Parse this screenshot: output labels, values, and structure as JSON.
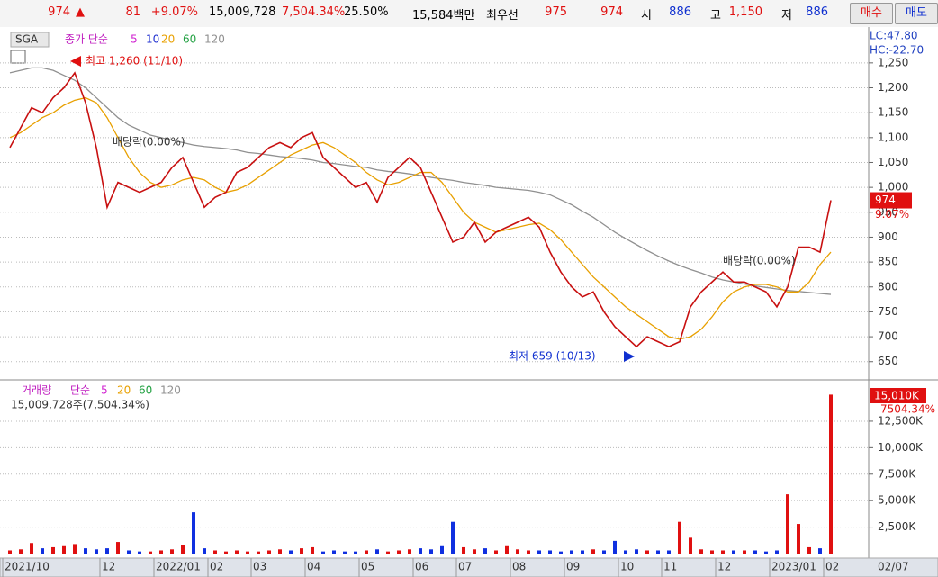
{
  "top_bar": {
    "price": "974",
    "arrow": "▲",
    "change": "81",
    "change_pct": "+9.07%",
    "volume": "15,009,728",
    "volume_pct": "7,504.34%",
    "turnover": "25.50%",
    "amount": "15,584백만",
    "best_label": "최우선",
    "ask": "975",
    "bid": "974",
    "open_label": "시",
    "open": "886",
    "high_label": "고",
    "high": "1,150",
    "low_label": "저",
    "low": "886",
    "buy": "매수",
    "sell": "매도"
  },
  "chart_data": [
    {
      "type": "line",
      "symbol": "SGA",
      "legend_label": "종가 단순",
      "periods": [
        5,
        10,
        20,
        60,
        120
      ],
      "period_colors": [
        "#d020d0",
        "#2030d0",
        "#e8a000",
        "#20a040",
        "#909090"
      ],
      "lc": "LC:47.80",
      "hc": "HC:-22.70",
      "last_label": "974",
      "last_pct": "9.07%",
      "annotations": [
        "최고 1,260 (11/10)",
        "배당락(0.00%)",
        "배당락(0.00%)",
        "최저 659 (10/13)"
      ],
      "ylim": [
        617,
        1313
      ],
      "yticks": [
        650,
        700,
        750,
        800,
        850,
        900,
        950,
        {
          "value": 1000,
          "label": "1,000"
        },
        {
          "value": 1050,
          "label": "1,050"
        },
        {
          "value": 1100,
          "label": "1,100"
        },
        {
          "value": 1150,
          "label": "1,150"
        },
        {
          "value": 1200,
          "label": "1,200"
        },
        {
          "value": 1250,
          "label": "1,250"
        }
      ],
      "grid": true,
      "series": [
        {
          "color": "#c81010",
          "values": [
            1080,
            1120,
            1160,
            1150,
            1180,
            1200,
            1230,
            1170,
            1080,
            960,
            1010,
            1000,
            990,
            1000,
            1010,
            1040,
            1060,
            1010,
            960,
            980,
            990,
            1030,
            1040,
            1060,
            1080,
            1090,
            1080,
            1100,
            1110,
            1060,
            1040,
            1020,
            1000,
            1010,
            970,
            1020,
            1040,
            1060,
            1040,
            990,
            940,
            890,
            900,
            930,
            890,
            910,
            920,
            930,
            940,
            920,
            870,
            830,
            800,
            780,
            790,
            750,
            720,
            700,
            680,
            700,
            690,
            680,
            690,
            760,
            790,
            810,
            830,
            810,
            810,
            800,
            790,
            760,
            800,
            880,
            880,
            870,
            974
          ]
        },
        {
          "color": "#e8a000",
          "values": [
            1100,
            1110,
            1125,
            1140,
            1150,
            1165,
            1175,
            1180,
            1170,
            1140,
            1100,
            1060,
            1030,
            1010,
            1000,
            1005,
            1015,
            1020,
            1015,
            1000,
            990,
            995,
            1005,
            1020,
            1035,
            1050,
            1065,
            1075,
            1085,
            1090,
            1080,
            1065,
            1050,
            1030,
            1015,
            1005,
            1010,
            1020,
            1030,
            1030,
            1010,
            980,
            950,
            930,
            920,
            910,
            915,
            920,
            925,
            928,
            915,
            895,
            870,
            845,
            820,
            800,
            780,
            760,
            745,
            730,
            715,
            700,
            695,
            700,
            715,
            740,
            770,
            790,
            800,
            805,
            805,
            800,
            790,
            790,
            810,
            845,
            870
          ]
        },
        {
          "color": "#909090",
          "values": [
            1230,
            1235,
            1240,
            1240,
            1235,
            1225,
            1215,
            1200,
            1180,
            1160,
            1140,
            1125,
            1115,
            1105,
            1100,
            1095,
            1090,
            1085,
            1082,
            1080,
            1078,
            1075,
            1070,
            1068,
            1065,
            1062,
            1060,
            1058,
            1055,
            1050,
            1048,
            1045,
            1042,
            1040,
            1035,
            1032,
            1030,
            1027,
            1024,
            1020,
            1017,
            1014,
            1010,
            1007,
            1004,
            1000,
            998,
            996,
            994,
            990,
            985,
            975,
            965,
            952,
            940,
            925,
            910,
            897,
            885,
            873,
            862,
            852,
            843,
            835,
            828,
            820,
            814,
            810,
            806,
            802,
            799,
            796,
            793,
            791,
            789,
            787,
            785
          ]
        }
      ]
    },
    {
      "type": "bar",
      "legend_label": "거래량",
      "legend_method": "단순",
      "periods": [
        5,
        20,
        60,
        120
      ],
      "period_colors": [
        "#d020d0",
        "#e8a000",
        "#20a040",
        "#909090"
      ],
      "summary": "15,009,728주(7,504.34%)",
      "last_label": "15,010K",
      "last_pct": "7504.34%",
      "end_label": "02/07",
      "up_color": "#e01010",
      "down_color": "#1030e0",
      "categories": [
        "2021/10",
        null,
        null,
        null,
        null,
        null,
        null,
        null,
        null,
        "12",
        null,
        null,
        null,
        null,
        "2022/01",
        null,
        null,
        null,
        null,
        "02",
        null,
        null,
        null,
        "03",
        null,
        null,
        null,
        null,
        "04",
        null,
        null,
        null,
        null,
        "05",
        null,
        null,
        null,
        null,
        "06",
        null,
        null,
        null,
        "07",
        null,
        null,
        null,
        null,
        "08",
        null,
        null,
        null,
        null,
        "09",
        null,
        null,
        null,
        null,
        "10",
        null,
        null,
        null,
        "11",
        null,
        null,
        null,
        null,
        "12",
        null,
        null,
        null,
        null,
        "2023/01",
        null,
        null,
        null,
        null,
        "02"
      ],
      "ylim": [
        0,
        16150
      ],
      "yticks": [
        {
          "value": 2500,
          "label": "2,500K"
        },
        {
          "value": 5000,
          "label": "5,000K"
        },
        {
          "value": 7500,
          "label": "7,500K"
        },
        {
          "value": 10000,
          "label": "10,000K"
        },
        {
          "value": 12500,
          "label": "12,500K"
        }
      ],
      "values": [
        300,
        400,
        1000,
        500,
        600,
        700,
        900,
        500,
        400,
        500,
        1100,
        300,
        200,
        200,
        300,
        400,
        800,
        3900,
        500,
        300,
        200,
        300,
        200,
        200,
        300,
        400,
        300,
        500,
        600,
        200,
        300,
        200,
        200,
        300,
        400,
        200,
        300,
        400,
        500,
        400,
        700,
        3000,
        600,
        400,
        500,
        300,
        700,
        400,
        300,
        300,
        300,
        200,
        300,
        300,
        400,
        300,
        1200,
        300,
        400,
        300,
        300,
        300,
        3000,
        1500,
        400,
        300,
        300,
        300,
        300,
        300,
        200,
        300,
        5600,
        2800,
        600,
        500,
        15010
      ]
    }
  ]
}
